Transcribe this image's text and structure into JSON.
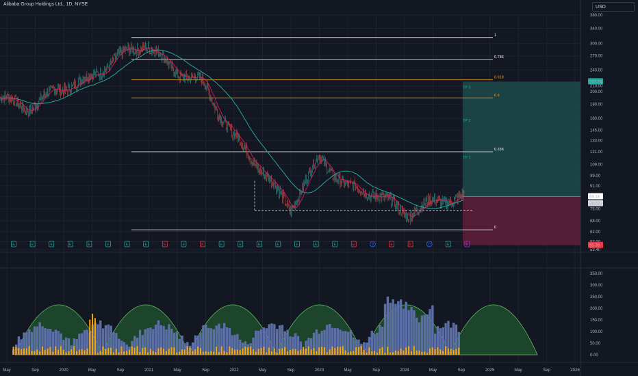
{
  "header": {
    "title": "Alibaba Group Holdings Ltd., 1D, NYSE",
    "currency": "USD"
  },
  "price_axis": {
    "ticks": [
      "380.00",
      "340.00",
      "300.00",
      "270.00",
      "240.00",
      "210.00",
      "200.00",
      "180.00",
      "160.00",
      "145.00",
      "133.00",
      "121.00",
      "109.00",
      "99.00",
      "91.00",
      "83.00",
      "75.00",
      "68.00",
      "62.00",
      "57.00",
      "53.40"
    ],
    "labels": [
      {
        "text": "217.74",
        "color": "#26a69a",
        "value": 217.74
      },
      {
        "text": "83.18",
        "color": "#ffffff",
        "value": 83.18
      },
      {
        "text": "78.52",
        "color": "#d1d4dc",
        "value": 78.52
      },
      {
        "text": "55.36",
        "color": "#f23645",
        "value": 55.36
      }
    ]
  },
  "volume_axis": {
    "ticks": [
      "350.00",
      "300.00",
      "250.00",
      "200.00",
      "150.00",
      "100.00",
      "50.00",
      "0.00"
    ]
  },
  "time_axis": {
    "ticks": [
      "May",
      "Sep",
      "2020",
      "May",
      "Sep",
      "2021",
      "May",
      "Sep",
      "2022",
      "May",
      "Sep",
      "2023",
      "May",
      "Sep",
      "2024",
      "May",
      "Sep",
      "2025",
      "May",
      "Sep",
      "2026"
    ]
  },
  "fib_levels": [
    {
      "label": "1",
      "value": 315,
      "color": "#ffffff"
    },
    {
      "label": "0.786",
      "value": 262,
      "color": "#ffffff"
    },
    {
      "label": "0.618",
      "value": 221,
      "color": "#f7a21b"
    },
    {
      "label": "0.5",
      "value": 190,
      "color": "#f7a21b"
    },
    {
      "label": "0.236",
      "value": 121,
      "color": "#ffffff"
    },
    {
      "label": "0",
      "value": 63,
      "color": "#ffffff"
    }
  ],
  "targets": [
    {
      "label": "TP 3",
      "value": 217.74
    },
    {
      "label": "TP 2",
      "value": 165
    },
    {
      "label": "TP 1",
      "value": 121
    }
  ],
  "earnings_markers": [
    {
      "t": "E",
      "c": "#26a69a"
    },
    {
      "t": "E",
      "c": "#26a69a"
    },
    {
      "t": "E",
      "c": "#26a69a"
    },
    {
      "t": "E",
      "c": "#26a69a"
    },
    {
      "t": "E",
      "c": "#26a69a"
    },
    {
      "t": "E",
      "c": "#26a69a"
    },
    {
      "t": "E",
      "c": "#26a69a"
    },
    {
      "t": "E",
      "c": "#26a69a"
    },
    {
      "t": "E",
      "c": "#f23645"
    },
    {
      "t": "E",
      "c": "#26a69a"
    },
    {
      "t": "E",
      "c": "#f23645"
    },
    {
      "t": "E",
      "c": "#26a69a"
    },
    {
      "t": "E",
      "c": "#26a69a"
    },
    {
      "t": "E",
      "c": "#26a69a"
    },
    {
      "t": "E",
      "c": "#26a69a"
    },
    {
      "t": "E",
      "c": "#26a69a"
    },
    {
      "t": "E",
      "c": "#26a69a"
    },
    {
      "t": "E",
      "c": "#26a69a"
    },
    {
      "t": "E",
      "c": "#f23645"
    },
    {
      "t": "D",
      "c": "#2962ff"
    },
    {
      "t": "E",
      "c": "#f23645"
    },
    {
      "t": "E",
      "c": "#f23645"
    },
    {
      "t": "D",
      "c": "#2962ff"
    },
    {
      "t": "E",
      "c": "#26a69a"
    },
    {
      "t": "E",
      "c": "#b224ef"
    }
  ],
  "colors": {
    "background": "#131722",
    "grid": "#1e222d",
    "candle_up": "#26a69a",
    "candle_down": "#ef5350",
    "ma_fast": "#e91e63",
    "ma_slow": "#26a69a",
    "profit_zone": "#1d4b4b",
    "loss_zone": "#5c1f3a",
    "volume_blue": "#5b6ea5",
    "volume_orange": "#ffa600",
    "cycle_fill": "#1d4b2c",
    "cycle_stroke": "#6fcf6f"
  },
  "chart_data": {
    "type": "line",
    "y_scale": "log",
    "price_ylim": [
      53.4,
      380
    ],
    "volume_ylim": [
      0,
      350
    ],
    "x": [
      "May",
      "Sep",
      "2020",
      "May",
      "Sep",
      "2021",
      "May",
      "Sep",
      "2022",
      "May",
      "Sep",
      "2023",
      "May",
      "Sep",
      "2024",
      "May",
      "Sep"
    ],
    "series": [
      {
        "values": [
          190,
          175,
          205,
          220,
          265,
          300,
          240,
          215,
          140,
          105,
          75,
          115,
          90,
          85,
          72,
          80,
          83
        ]
      }
    ],
    "position": {
      "entry": 83.18,
      "target": 217.74,
      "stop": 55.36,
      "support": 78.52
    }
  }
}
